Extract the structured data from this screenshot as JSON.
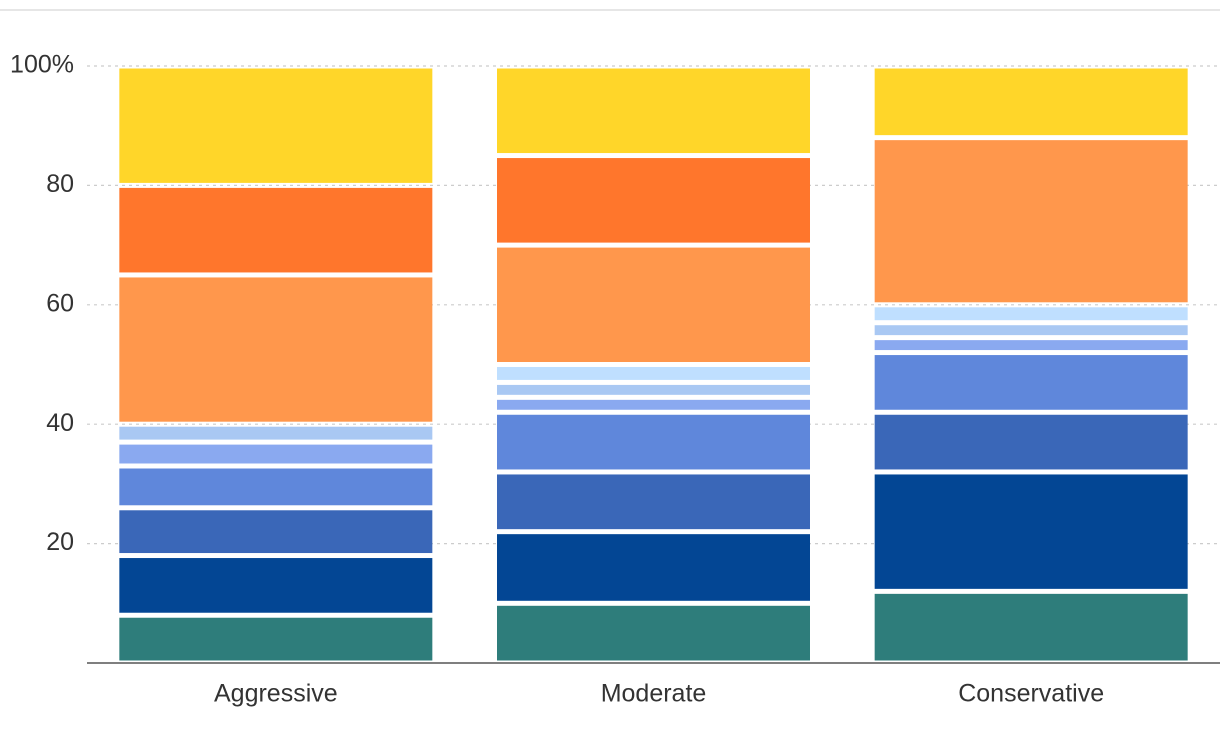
{
  "chart_data": {
    "type": "stacked-bar",
    "categories": [
      "Aggressive",
      "Moderate",
      "Conservative"
    ],
    "series": [
      {
        "color": "#2e7d7b",
        "values": [
          8,
          10,
          12
        ]
      },
      {
        "color": "#034694",
        "values": [
          10,
          12,
          20
        ]
      },
      {
        "color": "#3a67b8",
        "values": [
          8,
          10,
          10
        ]
      },
      {
        "color": "#5f87db",
        "values": [
          7,
          10,
          10
        ]
      },
      {
        "color": "#8aa9f0",
        "values": [
          4,
          2.5,
          2.5
        ]
      },
      {
        "color": "#a9c8f3",
        "values": [
          3,
          2.5,
          2.5
        ]
      },
      {
        "color": "#bfdfff",
        "values": [
          0,
          3,
          3
        ]
      },
      {
        "color": "#ff974c",
        "values": [
          25,
          20,
          28
        ]
      },
      {
        "color": "#ff762c",
        "values": [
          15,
          15,
          0
        ]
      },
      {
        "color": "#ffd629",
        "values": [
          20,
          15,
          12
        ]
      }
    ],
    "ylim": [
      0,
      100
    ],
    "yticks": [
      20,
      40,
      60,
      80,
      {
        "value": 100,
        "label": "100%"
      }
    ],
    "grid": true
  }
}
